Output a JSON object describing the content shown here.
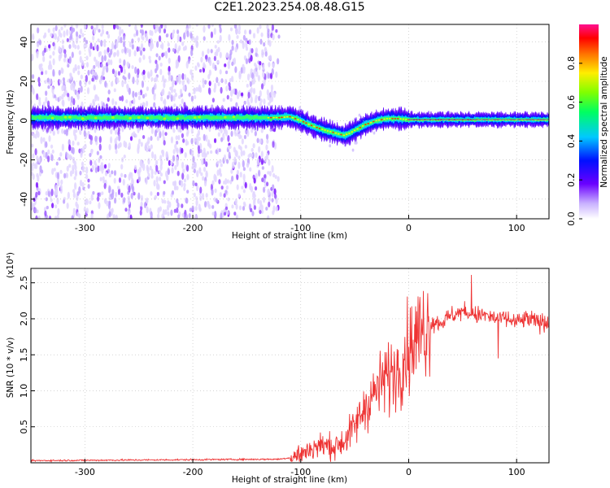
{
  "title": "C2E1.2023.254.08.48.G15",
  "chart_data": [
    {
      "type": "heatmap",
      "xlabel": "Height of straight line (km)",
      "ylabel": "Frequency (Hz)",
      "xlim": [
        -350,
        130
      ],
      "ylim": [
        -50,
        49
      ],
      "x_ticks": [
        -300,
        -200,
        -100,
        0,
        100
      ],
      "y_ticks": [
        -40,
        -20,
        0,
        20,
        40
      ],
      "colorbar": {
        "label": "Normalized spectral amplitude",
        "range": [
          0,
          1
        ],
        "ticks": [
          "0.0",
          "0.2",
          "0.4",
          "0.6",
          "0.8"
        ]
      },
      "ridge": {
        "x": [
          -350,
          -120,
          -110,
          -100,
          -90,
          -80,
          -70,
          -60,
          -55,
          -50,
          -40,
          -30,
          -20,
          -10,
          0,
          130
        ],
        "freq": [
          1.5,
          1.5,
          2,
          0,
          -2.5,
          -4.5,
          -6,
          -7.5,
          -6.5,
          -5,
          -2,
          0,
          1,
          1,
          0.5,
          0.5
        ]
      }
    },
    {
      "type": "line",
      "xlabel": "Height of straight line (km)",
      "ylabel": "SNR (10 * v/v)",
      "multiplier": "(x10⁴)",
      "xlim": [
        -350,
        130
      ],
      "ylim": [
        0,
        2.7
      ],
      "x_ticks": [
        -300,
        -200,
        -100,
        0,
        100
      ],
      "y_ticks": [
        "0.5",
        "1.0",
        "1.5",
        "2.0",
        "2.5"
      ],
      "series_color": "#ee3333",
      "envelope": {
        "x": [
          -350,
          -120,
          -110,
          -100,
          -90,
          -80,
          -70,
          -60,
          -50,
          -40,
          -30,
          -20,
          -10,
          0,
          10,
          20,
          30,
          40,
          50,
          60,
          70,
          80,
          90,
          100,
          110,
          120,
          130
        ],
        "y": [
          0.03,
          0.05,
          0.07,
          0.12,
          0.2,
          0.25,
          0.22,
          0.3,
          0.5,
          0.8,
          1.0,
          1.2,
          1.3,
          1.6,
          1.8,
          1.95,
          1.95,
          2.05,
          2.1,
          2.05,
          2.05,
          2.0,
          2.0,
          1.95,
          2.0,
          1.95,
          1.95
        ]
      }
    }
  ]
}
